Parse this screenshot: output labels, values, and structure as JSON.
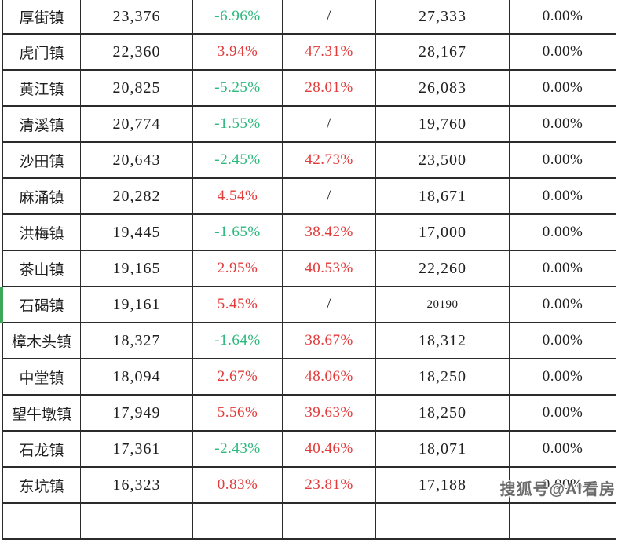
{
  "theme": {
    "grid": "#2b2b2b",
    "text": "#1f1f1f",
    "green": "#2cb97c",
    "red": "#e23b3b",
    "marker": "#3ea757"
  },
  "watermark": {
    "text": "搜狐号@AI看房"
  },
  "table": {
    "type": "table",
    "highlighted_row_index": 8,
    "columns": [
      "town",
      "price",
      "mom_pct",
      "yoy_pct",
      "ref_price",
      "change_pct"
    ],
    "rows": [
      {
        "town": "厚街镇",
        "v1": "23,376",
        "p1": "-6.96%",
        "p1c": "green",
        "p2": "/",
        "p2c": "plain",
        "v2": "27,333",
        "v2small": false,
        "p3": "0.00%"
      },
      {
        "town": "虎门镇",
        "v1": "22,360",
        "p1": "3.94%",
        "p1c": "red",
        "p2": "47.31%",
        "p2c": "red",
        "v2": "28,167",
        "v2small": false,
        "p3": "0.00%"
      },
      {
        "town": "黄江镇",
        "v1": "20,825",
        "p1": "-5.25%",
        "p1c": "green",
        "p2": "28.01%",
        "p2c": "red",
        "v2": "26,083",
        "v2small": false,
        "p3": "0.00%"
      },
      {
        "town": "清溪镇",
        "v1": "20,774",
        "p1": "-1.55%",
        "p1c": "green",
        "p2": "/",
        "p2c": "plain",
        "v2": "19,760",
        "v2small": false,
        "p3": "0.00%"
      },
      {
        "town": "沙田镇",
        "v1": "20,643",
        "p1": "-2.45%",
        "p1c": "green",
        "p2": "42.73%",
        "p2c": "red",
        "v2": "23,500",
        "v2small": false,
        "p3": "0.00%"
      },
      {
        "town": "麻涌镇",
        "v1": "20,282",
        "p1": "4.54%",
        "p1c": "red",
        "p2": "/",
        "p2c": "plain",
        "v2": "18,671",
        "v2small": false,
        "p3": "0.00%"
      },
      {
        "town": "洪梅镇",
        "v1": "19,445",
        "p1": "-1.65%",
        "p1c": "green",
        "p2": "38.42%",
        "p2c": "red",
        "v2": "17,000",
        "v2small": false,
        "p3": "0.00%"
      },
      {
        "town": "茶山镇",
        "v1": "19,165",
        "p1": "2.95%",
        "p1c": "red",
        "p2": "40.53%",
        "p2c": "red",
        "v2": "22,260",
        "v2small": false,
        "p3": "0.00%"
      },
      {
        "town": "石碣镇",
        "v1": "19,161",
        "p1": "5.45%",
        "p1c": "red",
        "p2": "/",
        "p2c": "plain",
        "v2": "20190",
        "v2small": true,
        "p3": "0.00%"
      },
      {
        "town": "樟木头镇",
        "v1": "18,327",
        "p1": "-1.64%",
        "p1c": "green",
        "p2": "38.67%",
        "p2c": "red",
        "v2": "18,312",
        "v2small": false,
        "p3": "0.00%"
      },
      {
        "town": "中堂镇",
        "v1": "18,094",
        "p1": "2.67%",
        "p1c": "red",
        "p2": "48.06%",
        "p2c": "red",
        "v2": "18,250",
        "v2small": false,
        "p3": "0.00%"
      },
      {
        "town": "望牛墩镇",
        "v1": "17,949",
        "p1": "5.56%",
        "p1c": "red",
        "p2": "39.63%",
        "p2c": "red",
        "v2": "18,250",
        "v2small": false,
        "p3": "0.00%"
      },
      {
        "town": "石龙镇",
        "v1": "17,361",
        "p1": "-2.43%",
        "p1c": "green",
        "p2": "40.46%",
        "p2c": "red",
        "v2": "18,071",
        "v2small": false,
        "p3": "0.00%"
      },
      {
        "town": "东坑镇",
        "v1": "16,323",
        "p1": "0.83%",
        "p1c": "red",
        "p2": "23.81%",
        "p2c": "red",
        "v2": "17,188",
        "v2small": false,
        "p3": "0.00%"
      }
    ]
  }
}
